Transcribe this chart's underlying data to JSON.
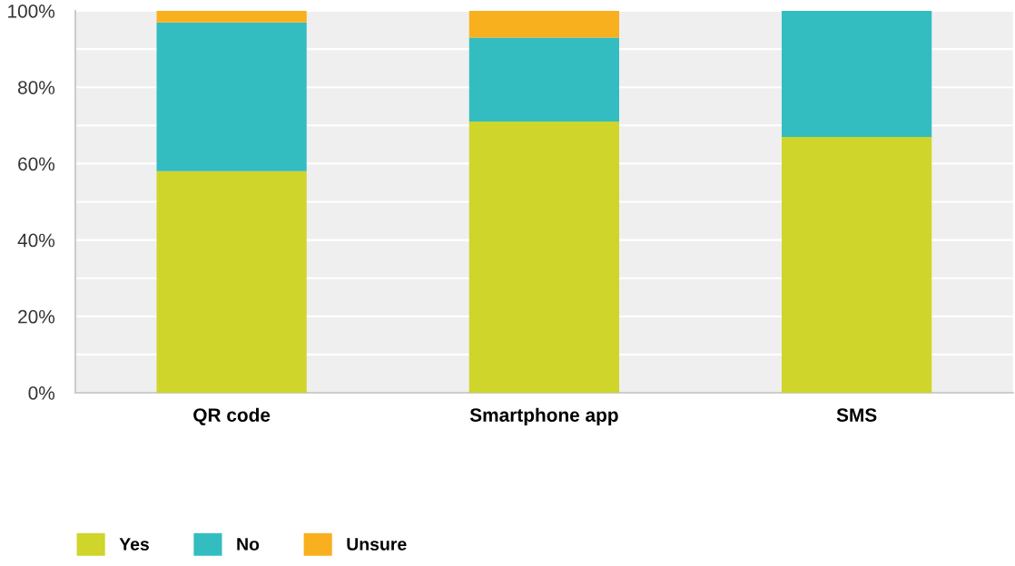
{
  "chart_data": {
    "type": "bar",
    "stacked": true,
    "categories": [
      "QR code",
      "Smartphone app",
      "SMS"
    ],
    "series": [
      {
        "name": "Yes",
        "color": "#cfd52a",
        "values": [
          58,
          71,
          67
        ]
      },
      {
        "name": "No",
        "color": "#33bdc0",
        "values": [
          39,
          22,
          33
        ]
      },
      {
        "name": "Unsure",
        "color": "#f8b01f",
        "values": [
          3,
          7,
          0
        ]
      }
    ],
    "ylim": [
      0,
      100
    ],
    "yticks": [
      {
        "value": 0,
        "label": "0%"
      },
      {
        "value": 10,
        "label": null
      },
      {
        "value": 20,
        "label": "20%"
      },
      {
        "value": 30,
        "label": null
      },
      {
        "value": 40,
        "label": "40%"
      },
      {
        "value": 50,
        "label": null
      },
      {
        "value": 60,
        "label": "60%"
      },
      {
        "value": 70,
        "label": null
      },
      {
        "value": 80,
        "label": "80%"
      },
      {
        "value": 90,
        "label": null
      },
      {
        "value": 100,
        "label": "100%"
      }
    ],
    "grid": "y",
    "legend": "bottom"
  }
}
